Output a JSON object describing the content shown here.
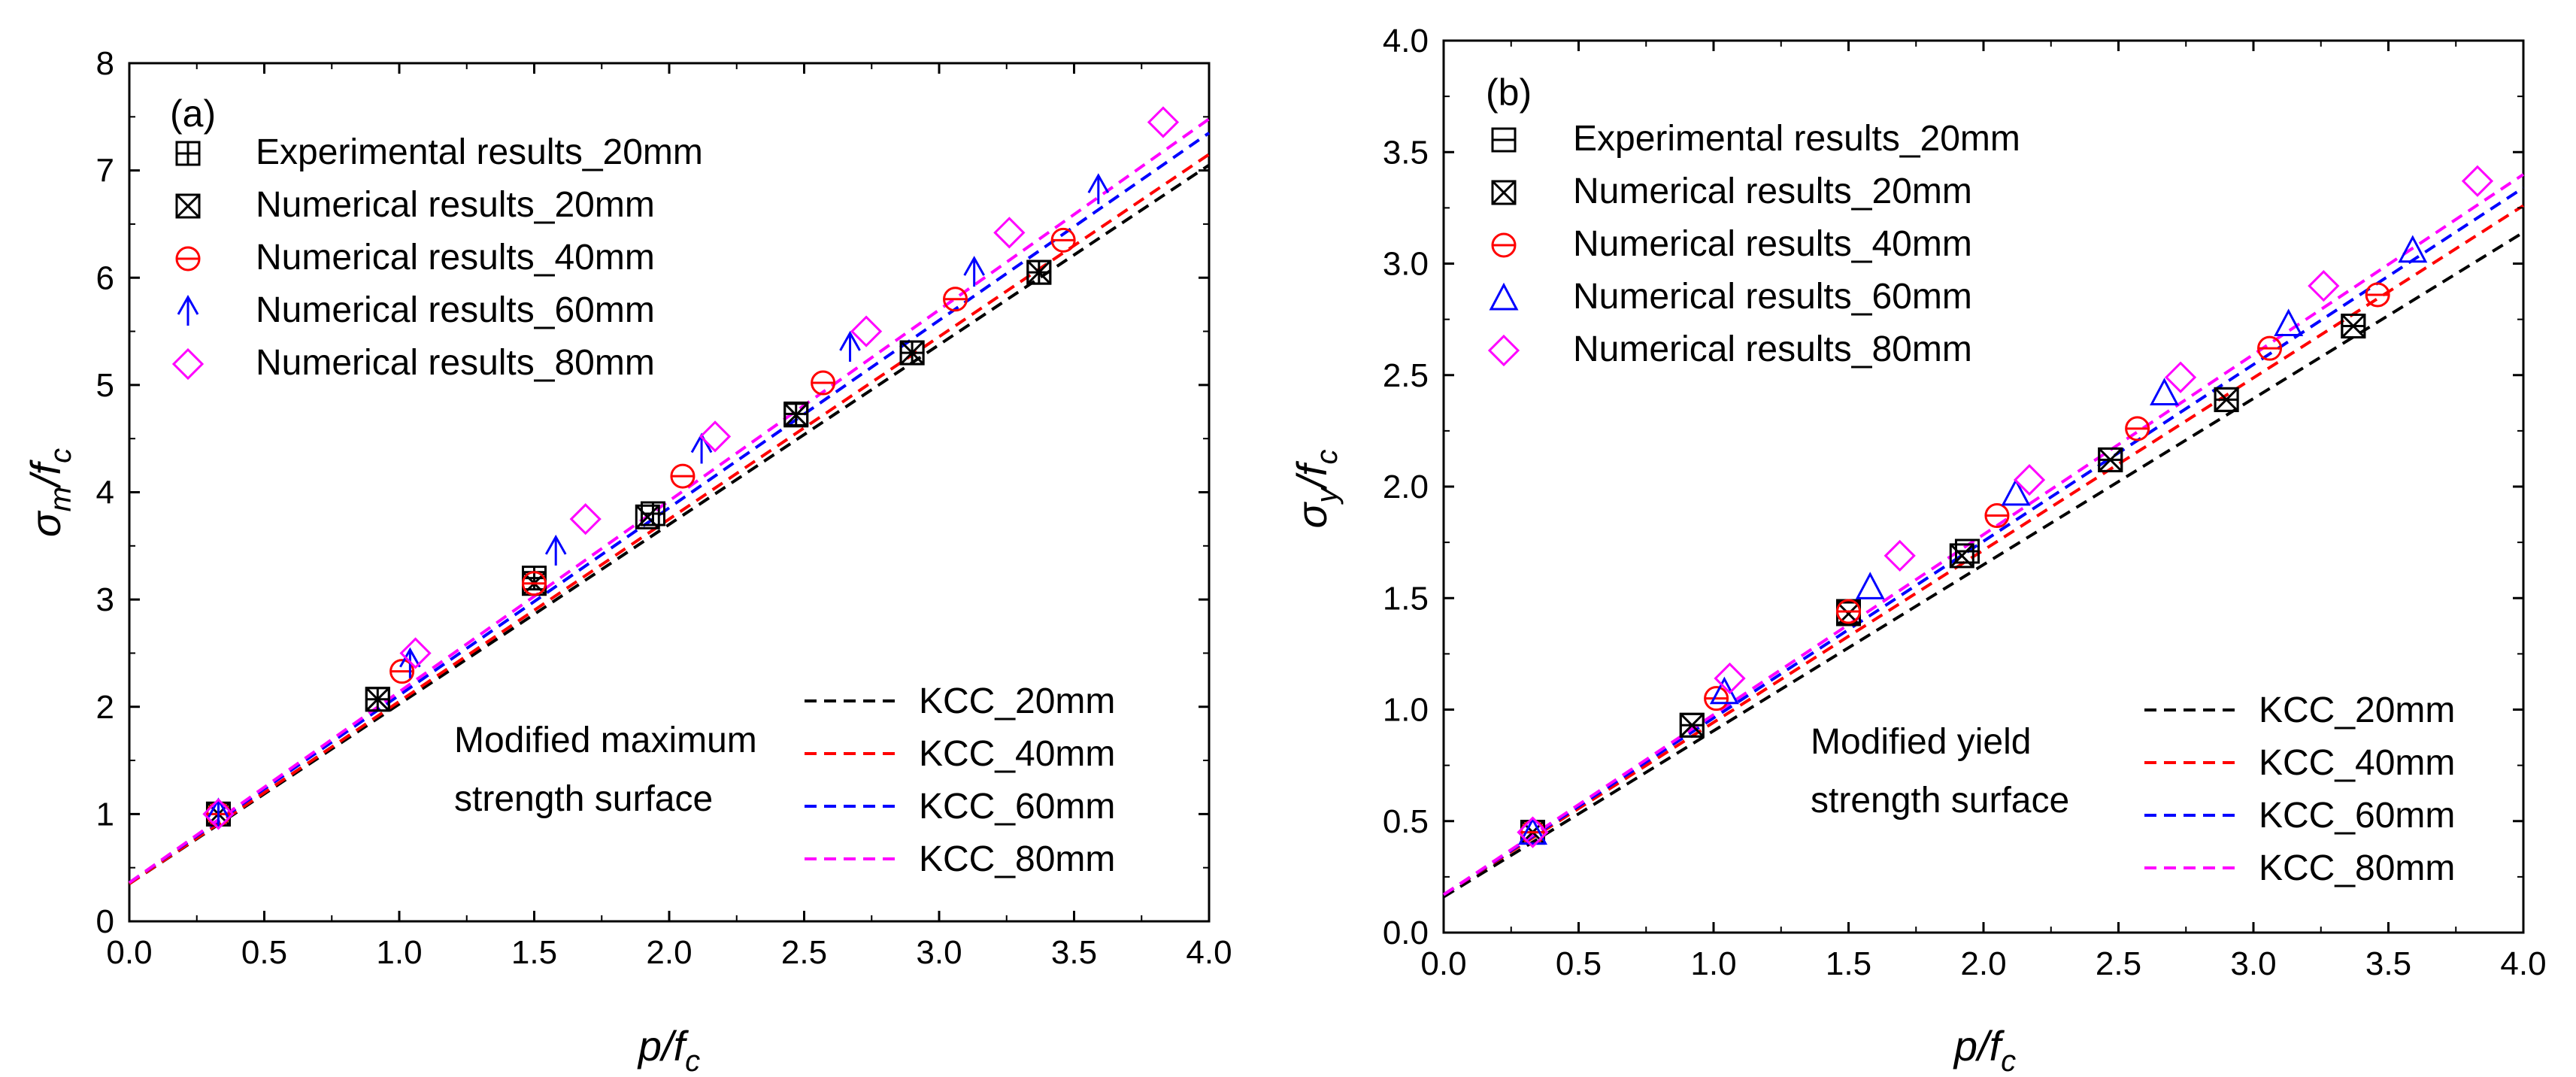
{
  "chart_data": [
    {
      "type": "scatter",
      "panel_label": "(a)",
      "xlabel": "p/f_c",
      "xlabel_main": "p/f",
      "xlabel_sub": "c",
      "ylabel": "σ_m/f_c",
      "ylabel_parts": [
        "σ",
        "m",
        "/f",
        "c"
      ],
      "xlim": [
        0.0,
        4.0
      ],
      "ylim": [
        0,
        8
      ],
      "xticks": [
        "0.0",
        "0.5",
        "1.0",
        "1.5",
        "2.0",
        "2.5",
        "3.0",
        "3.5",
        "4.0"
      ],
      "yticks": [
        "0",
        "1",
        "2",
        "3",
        "4",
        "5",
        "6",
        "7",
        "8"
      ],
      "annotation": [
        "Modified maximum",
        "strength surface"
      ],
      "series": [
        {
          "name": "Experimental results_20mm",
          "marker": "square-plus",
          "color": "#000000",
          "points": [
            [
              0.33,
              1.0
            ],
            [
              0.92,
              2.07
            ],
            [
              1.5,
              3.2
            ],
            [
              1.94,
              3.8
            ],
            [
              2.47,
              4.73
            ],
            [
              2.9,
              5.3
            ],
            [
              3.37,
              6.05
            ]
          ]
        },
        {
          "name": "Numerical results_20mm",
          "marker": "square-x",
          "color": "#000000",
          "points": [
            [
              0.33,
              1.0
            ],
            [
              0.92,
              2.07
            ],
            [
              1.5,
              3.15
            ],
            [
              1.92,
              3.77
            ],
            [
              2.47,
              4.72
            ],
            [
              2.9,
              5.3
            ],
            [
              3.37,
              6.05
            ]
          ]
        },
        {
          "name": "Numerical results_40mm",
          "marker": "circle-bar",
          "color": "#ff0000",
          "points": [
            [
              0.33,
              1.0
            ],
            [
              1.01,
              2.33
            ],
            [
              1.5,
              3.15
            ],
            [
              2.05,
              4.15
            ],
            [
              2.57,
              5.02
            ],
            [
              3.06,
              5.8
            ],
            [
              3.46,
              6.35
            ]
          ]
        },
        {
          "name": "Numerical results_60mm",
          "marker": "arrow-up",
          "color": "#0000ff",
          "points": [
            [
              0.33,
              1.0
            ],
            [
              1.04,
              2.4
            ],
            [
              1.58,
              3.45
            ],
            [
              2.12,
              4.4
            ],
            [
              2.67,
              5.35
            ],
            [
              3.13,
              6.05
            ],
            [
              3.59,
              6.82
            ]
          ]
        },
        {
          "name": "Numerical results_80mm",
          "marker": "diamond",
          "color": "#ff00ff",
          "points": [
            [
              0.33,
              1.0
            ],
            [
              1.06,
              2.5
            ],
            [
              1.69,
              3.75
            ],
            [
              2.17,
              4.52
            ],
            [
              2.73,
              5.5
            ],
            [
              3.26,
              6.42
            ],
            [
              3.83,
              7.45
            ]
          ]
        }
      ],
      "fit_lines": [
        {
          "name": "KCC_20mm",
          "color": "#000000",
          "x": [
            0.0,
            4.0
          ],
          "y": [
            0.35,
            7.05
          ]
        },
        {
          "name": "KCC_40mm",
          "color": "#ff0000",
          "x": [
            0.0,
            4.0
          ],
          "y": [
            0.35,
            7.15
          ]
        },
        {
          "name": "KCC_60mm",
          "color": "#0000ff",
          "x": [
            0.0,
            4.0
          ],
          "y": [
            0.36,
            7.35
          ]
        },
        {
          "name": "KCC_80mm",
          "color": "#ff00ff",
          "x": [
            0.0,
            4.0
          ],
          "y": [
            0.36,
            7.48
          ]
        }
      ]
    },
    {
      "type": "scatter",
      "panel_label": "(b)",
      "xlabel": "p/f_c",
      "xlabel_main": "p/f",
      "xlabel_sub": "c",
      "ylabel": "σ_y/f_c",
      "ylabel_parts": [
        "σ",
        "y",
        "/f",
        "c"
      ],
      "xlim": [
        0.0,
        4.0
      ],
      "ylim": [
        0.0,
        4.0
      ],
      "xticks": [
        "0.0",
        "0.5",
        "1.0",
        "1.5",
        "2.0",
        "2.5",
        "3.0",
        "3.5",
        "4.0"
      ],
      "yticks": [
        "0.0",
        "0.5",
        "1.0",
        "1.5",
        "2.0",
        "2.5",
        "3.0",
        "3.5",
        "4.0"
      ],
      "annotation": [
        "Modified yield",
        "strength surface"
      ],
      "series": [
        {
          "name": "Experimental results_20mm",
          "marker": "square-minus",
          "color": "#000000",
          "points": [
            [
              0.33,
              0.45
            ],
            [
              0.92,
              0.93
            ],
            [
              1.5,
              1.44
            ],
            [
              1.94,
              1.71
            ],
            [
              2.47,
              2.12
            ],
            [
              2.9,
              2.39
            ],
            [
              3.37,
              2.72
            ]
          ]
        },
        {
          "name": "Numerical results_20mm",
          "marker": "square-x",
          "color": "#000000",
          "points": [
            [
              0.33,
              0.45
            ],
            [
              0.92,
              0.93
            ],
            [
              1.5,
              1.43
            ],
            [
              1.92,
              1.69
            ],
            [
              2.47,
              2.12
            ],
            [
              2.9,
              2.39
            ],
            [
              3.37,
              2.72
            ]
          ]
        },
        {
          "name": "Numerical results_40mm",
          "marker": "circle-bar",
          "color": "#ff0000",
          "points": [
            [
              0.33,
              0.45
            ],
            [
              1.01,
              1.05
            ],
            [
              1.5,
              1.44
            ],
            [
              2.05,
              1.87
            ],
            [
              2.57,
              2.26
            ],
            [
              3.06,
              2.62
            ],
            [
              3.46,
              2.86
            ]
          ]
        },
        {
          "name": "Numerical results_60mm",
          "marker": "triangle",
          "color": "#0000ff",
          "points": [
            [
              0.33,
              0.45
            ],
            [
              1.04,
              1.08
            ],
            [
              1.58,
              1.55
            ],
            [
              2.12,
              1.97
            ],
            [
              2.67,
              2.42
            ],
            [
              3.13,
              2.73
            ],
            [
              3.59,
              3.06
            ]
          ]
        },
        {
          "name": "Numerical results_80mm",
          "marker": "diamond",
          "color": "#ff00ff",
          "points": [
            [
              0.33,
              0.45
            ],
            [
              1.06,
              1.14
            ],
            [
              1.69,
              1.69
            ],
            [
              2.17,
              2.03
            ],
            [
              2.73,
              2.49
            ],
            [
              3.26,
              2.9
            ],
            [
              3.83,
              3.37
            ]
          ]
        }
      ],
      "fit_lines": [
        {
          "name": "KCC_20mm",
          "color": "#000000",
          "x": [
            0.0,
            4.0
          ],
          "y": [
            0.16,
            3.14
          ]
        },
        {
          "name": "KCC_40mm",
          "color": "#ff0000",
          "x": [
            0.0,
            4.0
          ],
          "y": [
            0.17,
            3.26
          ]
        },
        {
          "name": "KCC_60mm",
          "color": "#0000ff",
          "x": [
            0.0,
            4.0
          ],
          "y": [
            0.17,
            3.34
          ]
        },
        {
          "name": "KCC_80mm",
          "color": "#ff00ff",
          "x": [
            0.0,
            4.0
          ],
          "y": [
            0.17,
            3.4
          ]
        }
      ]
    }
  ]
}
